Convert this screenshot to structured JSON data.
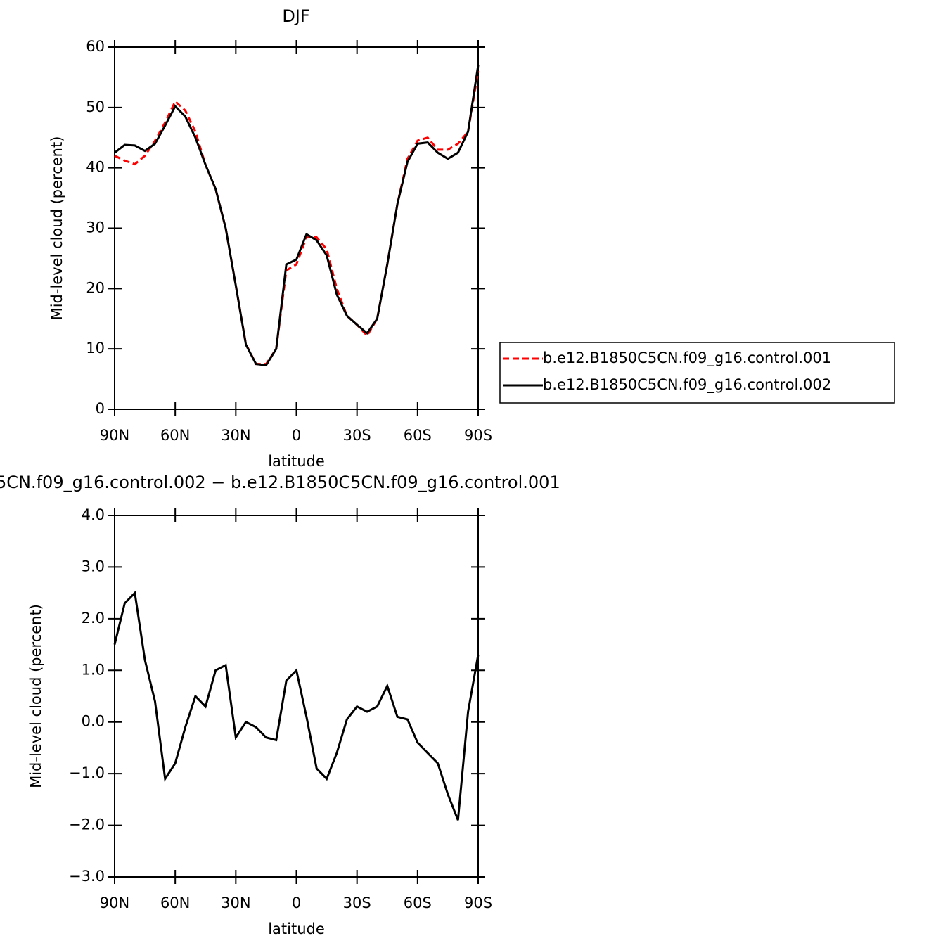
{
  "chart_data": [
    {
      "type": "line",
      "title": "DJF",
      "xlabel": "latitude",
      "ylabel": "Mid-level cloud (percent)",
      "x": [
        90,
        85,
        80,
        75,
        70,
        65,
        60,
        55,
        50,
        45,
        40,
        35,
        30,
        25,
        20,
        15,
        10,
        5,
        0,
        -5,
        -10,
        -15,
        -20,
        -25,
        -30,
        -35,
        -40,
        -45,
        -50,
        -55,
        -60,
        -65,
        -70,
        -75,
        -80,
        -85,
        -90
      ],
      "series": [
        {
          "name": "b.e12.B1850C5CN.f09_g16.control.001",
          "color": "#ff0000",
          "dash": true,
          "values": [
            42,
            41.2,
            40.6,
            42,
            44.5,
            47.5,
            51,
            49.5,
            46,
            40.5,
            36.5,
            30,
            20.5,
            10.8,
            7.5,
            7.5,
            10,
            23,
            24,
            28.5,
            28.5,
            26.5,
            20,
            15.5,
            14,
            12.2,
            15,
            24,
            34,
            41.5,
            44.5,
            45,
            43,
            43,
            44,
            46,
            56
          ]
        },
        {
          "name": "b.e12.B1850C5CN.f09_g16.control.002",
          "color": "#000000",
          "dash": false,
          "values": [
            42.5,
            43.8,
            43.7,
            42.8,
            44,
            47,
            50.2,
            48.5,
            45,
            40.5,
            36.5,
            30,
            20.5,
            10.7,
            7.5,
            7.3,
            10,
            24,
            24.8,
            29,
            28,
            25.5,
            19,
            15.5,
            14,
            12.6,
            15,
            24,
            34,
            41,
            44,
            44.2,
            42.5,
            41.5,
            42.5,
            46,
            57
          ]
        }
      ],
      "xlim": [
        90,
        -90
      ],
      "xticks": [
        {
          "value": 90,
          "label": "90N"
        },
        {
          "value": 60,
          "label": "60N"
        },
        {
          "value": 30,
          "label": "30N"
        },
        0,
        {
          "value": -30,
          "label": "30S"
        },
        {
          "value": -60,
          "label": "60S"
        },
        {
          "value": -90,
          "label": "90S"
        }
      ],
      "ylim": [
        0,
        60
      ],
      "yticks": [
        0,
        10,
        20,
        30,
        40,
        50,
        60
      ],
      "legend": "right"
    },
    {
      "type": "line",
      "title": "5CN.f09_g16.control.002 − b.e12.B1850C5CN.f09_g16.control.001",
      "xlabel": "latitude",
      "ylabel": "Mid-level cloud (percent)",
      "x": [
        90,
        85,
        80,
        75,
        70,
        65,
        60,
        55,
        50,
        45,
        40,
        35,
        30,
        25,
        20,
        15,
        10,
        5,
        0,
        -5,
        -10,
        -15,
        -20,
        -25,
        -30,
        -35,
        -40,
        -45,
        -50,
        -55,
        -60,
        -65,
        -70,
        -75,
        -80,
        -85,
        -90
      ],
      "color": "#000000",
      "values": [
        1.5,
        2.3,
        2.5,
        1.2,
        0.4,
        -1.1,
        -0.8,
        -0.1,
        0.5,
        0.3,
        1.0,
        1.1,
        -0.3,
        0.0,
        -0.1,
        -0.3,
        -0.35,
        0.8,
        1.0,
        0.1,
        -0.9,
        -1.1,
        -0.6,
        0.05,
        0.3,
        0.2,
        0.3,
        0.7,
        0.1,
        0.05,
        -0.4,
        -0.6,
        -0.8,
        -1.4,
        -1.9,
        0.2,
        1.3
      ],
      "xlim": [
        90,
        -90
      ],
      "xticks": [
        {
          "value": 90,
          "label": "90N"
        },
        {
          "value": 60,
          "label": "60N"
        },
        {
          "value": 30,
          "label": "30N"
        },
        0,
        {
          "value": -30,
          "label": "30S"
        },
        {
          "value": -60,
          "label": "60S"
        },
        {
          "value": -90,
          "label": "90S"
        }
      ],
      "ylim": [
        -3,
        4
      ],
      "yticks": [
        {
          "value": -3,
          "label": "−3.0"
        },
        {
          "value": -2,
          "label": "−2.0"
        },
        {
          "value": -1,
          "label": "−1.0"
        },
        {
          "value": 0,
          "label": "0.0"
        },
        {
          "value": 1,
          "label": "1.0"
        },
        {
          "value": 2,
          "label": "2.0"
        },
        {
          "value": 3,
          "label": "3.0"
        },
        {
          "value": 4,
          "label": "4.0"
        }
      ]
    }
  ]
}
